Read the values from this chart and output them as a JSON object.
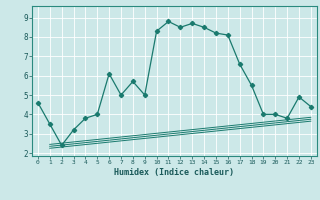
{
  "title": "",
  "xlabel": "Humidex (Indice chaleur)",
  "bg_color": "#cce8e8",
  "grid_color": "#ffffff",
  "line_color": "#1a7a6e",
  "xlim": [
    -0.5,
    23.5
  ],
  "ylim": [
    1.85,
    9.6
  ],
  "xtick_labels": [
    "0",
    "1",
    "2",
    "3",
    "4",
    "5",
    "6",
    "7",
    "8",
    "9",
    "10",
    "11",
    "12",
    "13",
    "14",
    "15",
    "16",
    "17",
    "18",
    "19",
    "20",
    "21",
    "22",
    "23"
  ],
  "ytick_vals": [
    2,
    3,
    4,
    5,
    6,
    7,
    8,
    9
  ],
  "series1_x": [
    0,
    1,
    2,
    3,
    4,
    5,
    6,
    7,
    8,
    9,
    10,
    11,
    12,
    13,
    14,
    15,
    16,
    17,
    18,
    19,
    20,
    21,
    22,
    23
  ],
  "series1_y": [
    4.6,
    3.5,
    2.4,
    3.2,
    3.8,
    4.0,
    6.1,
    5.0,
    5.7,
    5.0,
    8.3,
    8.8,
    8.5,
    8.7,
    8.5,
    8.2,
    8.1,
    6.6,
    5.5,
    4.0,
    4.0,
    3.8,
    4.9,
    4.4
  ],
  "series2_x": [
    1,
    23
  ],
  "series2_y": [
    2.45,
    3.85
  ],
  "series3_x": [
    1,
    23
  ],
  "series3_y": [
    2.35,
    3.75
  ],
  "series4_x": [
    1,
    23
  ],
  "series4_y": [
    2.25,
    3.65
  ]
}
